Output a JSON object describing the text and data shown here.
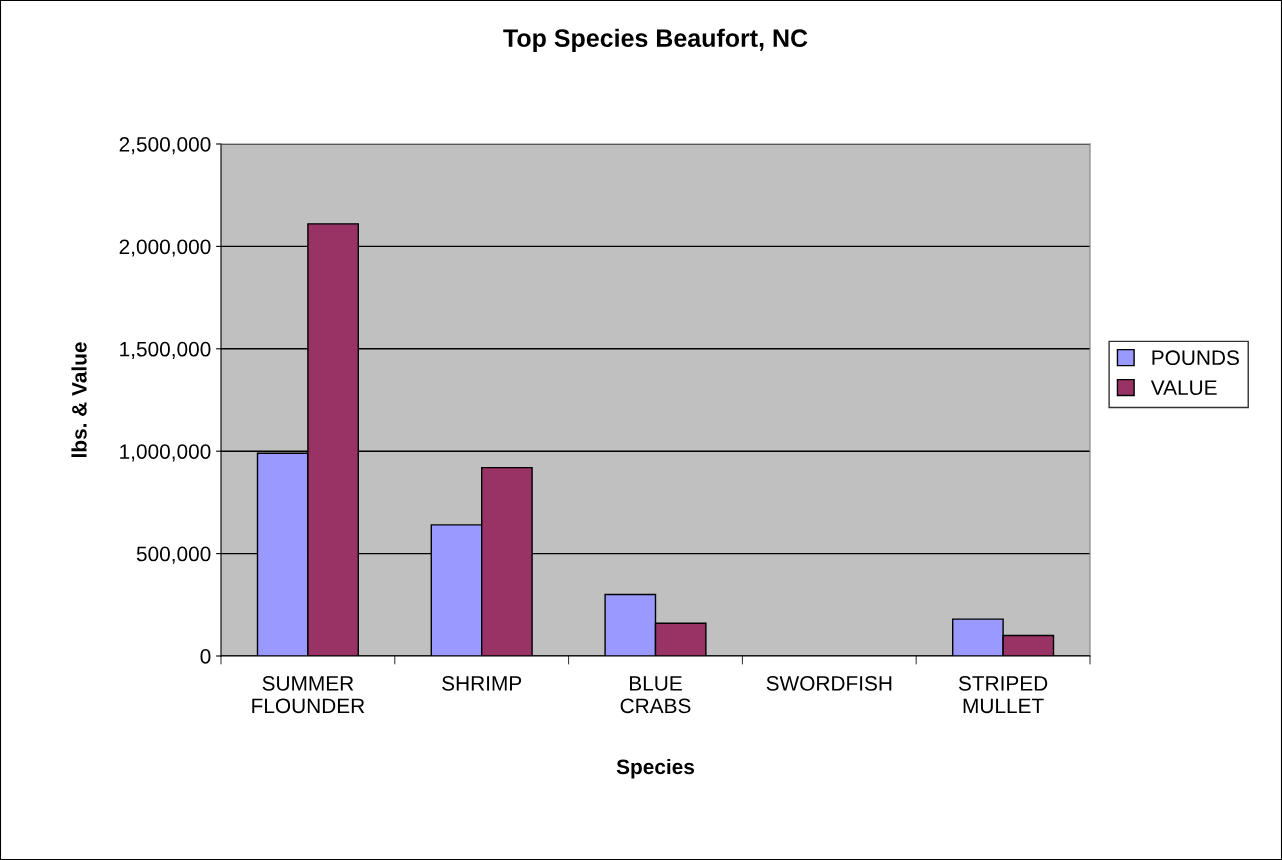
{
  "chart_data": {
    "type": "bar",
    "title": "Top Species Beaufort, NC",
    "xlabel": "Species",
    "ylabel": "lbs. & Value",
    "categories": [
      "SUMMER\nFLOUNDER",
      "SHRIMP",
      "BLUE\nCRABS",
      "SWORDFISH",
      "STRIPED\nMULLET"
    ],
    "series": [
      {
        "name": "POUNDS",
        "color": "#9999ff",
        "values": [
          990000,
          640000,
          300000,
          null,
          180000
        ]
      },
      {
        "name": "VALUE",
        "color": "#993366",
        "values": [
          2110000,
          920000,
          160000,
          null,
          100000
        ]
      }
    ],
    "ylim": [
      0,
      2500000
    ],
    "yticks": [
      {
        "value": 0,
        "label": "0"
      },
      {
        "value": 500000,
        "label": "500,000"
      },
      {
        "value": 1000000,
        "label": "1,000,000"
      },
      {
        "value": 1500000,
        "label": "1,500,000"
      },
      {
        "value": 2000000,
        "label": "2,000,000"
      },
      {
        "value": 2500000,
        "label": "2,500,000"
      }
    ],
    "grid": "y",
    "legend": "right"
  }
}
